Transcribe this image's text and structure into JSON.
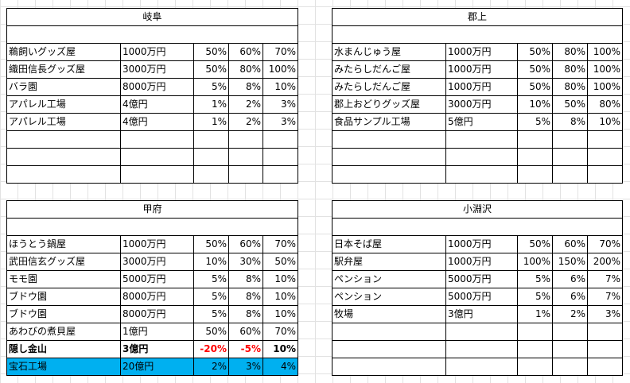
{
  "tables": {
    "gifu": {
      "title": "岐阜",
      "rows": [
        [
          "鵜飼いグッズ屋",
          "1000万円",
          "50%",
          "60%",
          "70%"
        ],
        [
          "織田信長グッズ屋",
          "3000万円",
          "50%",
          "80%",
          "100%"
        ],
        [
          "バラ園",
          "8000万円",
          "5%",
          "8%",
          "10%"
        ],
        [
          "アパレル工場",
          "4億円",
          "1%",
          "2%",
          "3%"
        ],
        [
          "アパレル工場",
          "4億円",
          "1%",
          "2%",
          "3%"
        ],
        [
          "",
          "",
          "",
          "",
          ""
        ],
        [
          "",
          "",
          "",
          "",
          ""
        ],
        [
          "",
          "",
          "",
          "",
          ""
        ]
      ]
    },
    "gujo": {
      "title": "郡上",
      "rows": [
        [
          "水まんじゅう屋",
          "1000万円",
          "50%",
          "80%",
          "100%"
        ],
        [
          "みたらしだんご屋",
          "1000万円",
          "50%",
          "80%",
          "100%"
        ],
        [
          "みたらしだんご屋",
          "1000万円",
          "50%",
          "80%",
          "100%"
        ],
        [
          "郡上おどりグッズ屋",
          "3000万円",
          "10%",
          "50%",
          "80%"
        ],
        [
          "食品サンプル工場",
          "5億円",
          "5%",
          "8%",
          "10%"
        ],
        [
          "",
          "",
          "",
          "",
          ""
        ],
        [
          "",
          "",
          "",
          "",
          ""
        ],
        [
          "",
          "",
          "",
          "",
          ""
        ]
      ]
    },
    "kofu": {
      "title": "甲府",
      "rows": [
        [
          "ほうとう鍋屋",
          "1000万円",
          "50%",
          "60%",
          "70%"
        ],
        [
          "武田信玄グッズ屋",
          "3000万円",
          "10%",
          "30%",
          "50%"
        ],
        [
          "モモ園",
          "5000万円",
          "5%",
          "8%",
          "10%"
        ],
        [
          "ブドウ園",
          "8000万円",
          "5%",
          "8%",
          "10%"
        ],
        [
          "ブドウ園",
          "8000万円",
          "5%",
          "8%",
          "10%"
        ],
        [
          "あわびの煮貝屋",
          "1億円",
          "50%",
          "60%",
          "70%"
        ],
        [
          "隠し金山",
          "3億円",
          "-20%",
          "-5%",
          "10%"
        ],
        [
          "宝石工場",
          "20億円",
          "2%",
          "3%",
          "4%"
        ]
      ]
    },
    "kobuchizawa": {
      "title": "小淵沢",
      "rows": [
        [
          "日本そば屋",
          "1000万円",
          "50%",
          "60%",
          "70%"
        ],
        [
          "駅弁屋",
          "1000万円",
          "100%",
          "150%",
          "200%"
        ],
        [
          "ペンション",
          "5000万円",
          "5%",
          "6%",
          "7%"
        ],
        [
          "ペンション",
          "5000万円",
          "5%",
          "6%",
          "7%"
        ],
        [
          "牧場",
          "3億円",
          "1%",
          "2%",
          "3%"
        ],
        [
          "",
          "",
          "",
          "",
          ""
        ],
        [
          "",
          "",
          "",
          "",
          ""
        ],
        [
          "",
          "",
          "",
          "",
          ""
        ]
      ]
    }
  },
  "row_styles": {
    "bold_row_label": "隠し金山",
    "highlight_row_label": "宝石工場",
    "highlight_color": "#00b0f0",
    "negative_color": "#ff0000"
  }
}
